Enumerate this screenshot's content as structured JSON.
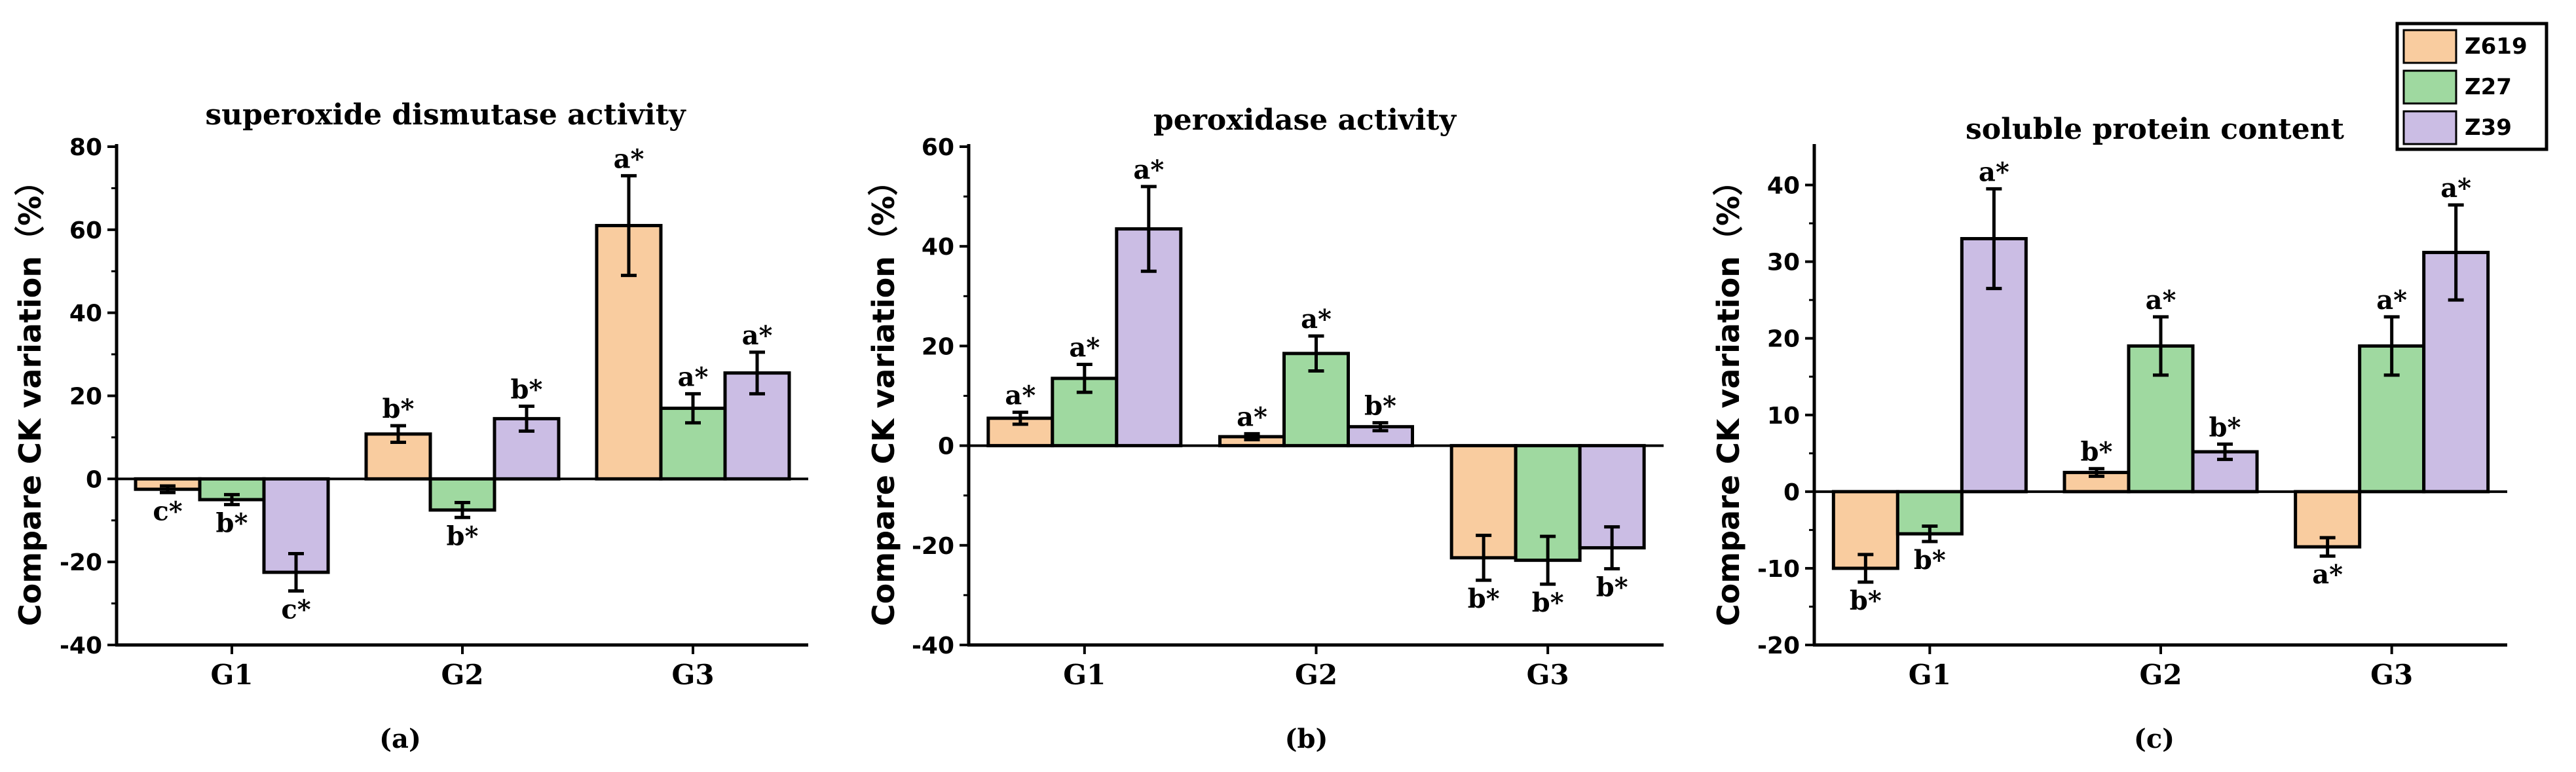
{
  "colors": {
    "Z619": "#f9cc9f",
    "Z27": "#9fd9a0",
    "Z39": "#cbbde4",
    "axis": "#000000"
  },
  "legend": {
    "entries": [
      "Z619",
      "Z27",
      "Z39"
    ],
    "placement": "top-right"
  },
  "chart_data": [
    {
      "type": "bar",
      "panel_label": "(a)",
      "title": "superoxide dismutase activity",
      "ylabel": "Compare CK variation（%）",
      "xlabel": "",
      "categories": [
        "G1",
        "G2",
        "G3"
      ],
      "ylim": [
        -40,
        80
      ],
      "yticks": [
        -40,
        -20,
        0,
        20,
        40,
        60,
        80
      ],
      "ytick_labels": [
        "-40",
        "-20",
        "0",
        "20",
        "40",
        "60",
        "80"
      ],
      "series": [
        {
          "name": "Z619",
          "values": [
            -2.5,
            10.8,
            61
          ],
          "errors": [
            0.8,
            2,
            12
          ],
          "labels": [
            "c*",
            "b*",
            "a*"
          ]
        },
        {
          "name": "Z27",
          "values": [
            -5,
            -7.5,
            17
          ],
          "errors": [
            1.2,
            1.8,
            3.5
          ],
          "labels": [
            "b*",
            "b*",
            "a*"
          ]
        },
        {
          "name": "Z39",
          "values": [
            -22.5,
            14.5,
            25.5
          ],
          "errors": [
            4.5,
            3,
            5
          ],
          "labels": [
            "c*",
            "b*",
            "a*"
          ]
        }
      ]
    },
    {
      "type": "bar",
      "panel_label": "(b)",
      "title": "peroxidase activity",
      "ylabel": "Compare CK variation（%）",
      "xlabel": "",
      "categories": [
        "G1",
        "G2",
        "G3"
      ],
      "ylim": [
        -40,
        60
      ],
      "yticks": [
        -40,
        -20,
        0,
        20,
        40,
        60
      ],
      "ytick_labels": [
        "-40",
        "-20",
        "0",
        "20",
        "40",
        "60"
      ],
      "series": [
        {
          "name": "Z619",
          "values": [
            5.5,
            1.8,
            -22.5
          ],
          "errors": [
            1.2,
            0.6,
            4.5
          ],
          "labels": [
            "a*",
            "a*",
            "b*"
          ]
        },
        {
          "name": "Z27",
          "values": [
            13.5,
            18.5,
            -23
          ],
          "errors": [
            2.8,
            3.5,
            4.8
          ],
          "labels": [
            "a*",
            "a*",
            "b*"
          ]
        },
        {
          "name": "Z39",
          "values": [
            43.5,
            3.8,
            -20.5
          ],
          "errors": [
            8.5,
            0.8,
            4.2
          ],
          "labels": [
            "a*",
            "b*",
            "b*"
          ]
        }
      ]
    },
    {
      "type": "bar",
      "panel_label": "(c)",
      "title": "soluble protein content",
      "ylabel": "Compare CK variation（%）",
      "xlabel": "",
      "categories": [
        "G1",
        "G2",
        "G3"
      ],
      "ylim": [
        -20,
        45
      ],
      "yticks": [
        -20,
        -10,
        0,
        10,
        20,
        30,
        40
      ],
      "ytick_labels": [
        "-20",
        "-10",
        "0",
        "10",
        "20",
        "30",
        "40"
      ],
      "series": [
        {
          "name": "Z619",
          "values": [
            -10,
            2.5,
            -7.2
          ],
          "errors": [
            1.8,
            0.5,
            1.2
          ],
          "labels": [
            "b*",
            "b*",
            "a*"
          ]
        },
        {
          "name": "Z27",
          "values": [
            -5.5,
            19,
            19
          ],
          "errors": [
            1,
            3.8,
            3.8
          ],
          "labels": [
            "b*",
            "a*",
            "a*"
          ]
        },
        {
          "name": "Z39",
          "values": [
            33,
            5.2,
            31.2
          ],
          "errors": [
            6.5,
            1,
            6.2
          ],
          "labels": [
            "a*",
            "b*",
            "a*"
          ]
        }
      ]
    }
  ]
}
